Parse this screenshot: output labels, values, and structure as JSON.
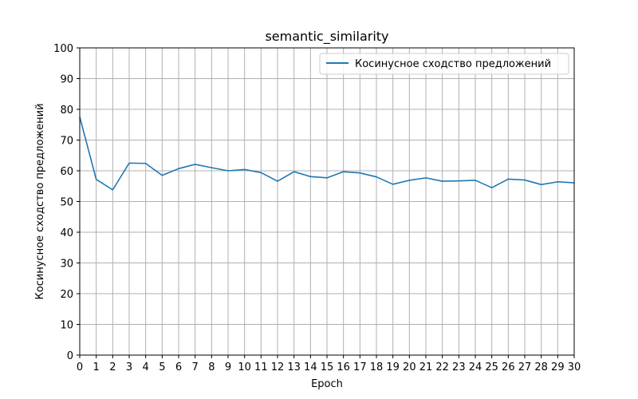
{
  "chart_data": {
    "type": "line",
    "title": "semantic_similarity",
    "xlabel": "Epoch",
    "ylabel": "Косинусное сходство предложений",
    "xlim": [
      0,
      30
    ],
    "ylim": [
      0,
      100
    ],
    "x_ticks": [
      0,
      1,
      2,
      3,
      4,
      5,
      6,
      7,
      8,
      9,
      10,
      11,
      12,
      13,
      14,
      15,
      16,
      17,
      18,
      19,
      20,
      21,
      22,
      23,
      24,
      25,
      26,
      27,
      28,
      29,
      30
    ],
    "y_ticks": [
      0,
      10,
      20,
      30,
      40,
      50,
      60,
      70,
      80,
      90,
      100
    ],
    "grid": true,
    "legend_position": "top-right",
    "x": [
      0,
      1,
      2,
      3,
      4,
      5,
      6,
      7,
      8,
      9,
      10,
      11,
      12,
      13,
      14,
      15,
      16,
      17,
      18,
      19,
      20,
      21,
      22,
      23,
      24,
      25,
      26,
      27,
      28,
      29,
      30
    ],
    "series": [
      {
        "name": "Косинусное сходство предложений",
        "color": "#1f77b4",
        "values": [
          77.5,
          57.2,
          53.8,
          62.5,
          62.4,
          58.5,
          60.7,
          62.1,
          61.0,
          60.0,
          60.4,
          59.4,
          56.6,
          59.7,
          58.1,
          57.7,
          59.7,
          59.3,
          58.0,
          55.6,
          56.9,
          57.7,
          56.6,
          56.7,
          56.9,
          54.5,
          57.3,
          57.0,
          55.5,
          56.4,
          56.1
        ]
      }
    ]
  }
}
